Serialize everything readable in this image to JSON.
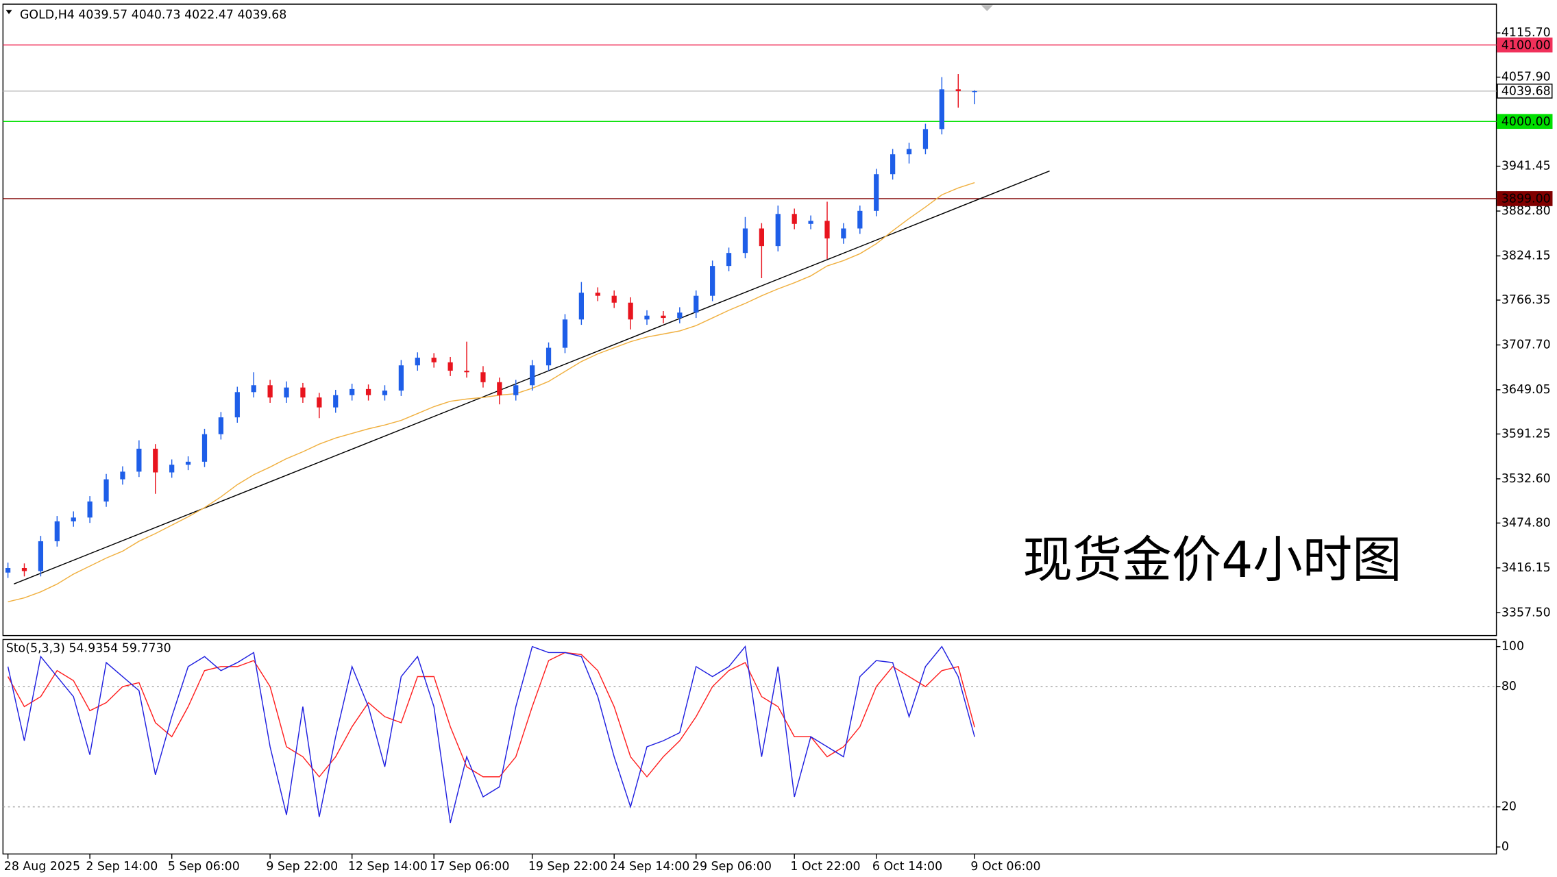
{
  "chart_data": [
    {
      "type": "candlestick",
      "title": "GOLD,H4  4039.57 4040.73 4022.47 4039.68",
      "annotation": "现货金价4小时图",
      "categories": [
        "28 Aug 2025",
        null,
        null,
        null,
        null,
        "2 Sep 14:00",
        null,
        null,
        null,
        null,
        "5 Sep 06:00",
        null,
        null,
        null,
        null,
        null,
        "9 Sep 22:00",
        null,
        null,
        null,
        null,
        "12 Sep 14:00",
        null,
        null,
        null,
        null,
        "17 Sep 06:00",
        null,
        null,
        null,
        null,
        null,
        "19 Sep 22:00",
        null,
        null,
        null,
        null,
        "24 Sep 14:00",
        null,
        null,
        null,
        null,
        "29 Sep 06:00",
        null,
        null,
        null,
        null,
        null,
        "1 Oct 22:00",
        null,
        null,
        null,
        null,
        "6 Oct 14:00",
        null,
        null,
        null,
        null,
        null,
        "9 Oct 06:00"
      ],
      "open": [
        3410,
        3416,
        3412,
        3451,
        3477,
        3482,
        3503,
        3532,
        3542,
        3572,
        3541,
        3551,
        3555,
        3591,
        3613,
        3646,
        3655,
        3639,
        3652,
        3639,
        3626,
        3642,
        3650,
        3642,
        3648,
        3681,
        3691,
        3685,
        3674,
        3672,
        3659,
        3642,
        3655,
        3681,
        3704,
        3741,
        3776,
        3772,
        3763,
        3741,
        3746,
        3743,
        3750,
        3772,
        3811,
        3828,
        3860,
        3837,
        3879,
        3866,
        3870,
        3847,
        3860,
        3883,
        3931,
        3957,
        3964,
        3990,
        4042,
        4039.57
      ],
      "high": [
        3423,
        3422,
        3458,
        3484,
        3490,
        3510,
        3539,
        3549,
        3583,
        3578,
        3558,
        3562,
        3598,
        3620,
        3653,
        3672,
        3662,
        3660,
        3658,
        3645,
        3649,
        3657,
        3656,
        3655,
        3688,
        3698,
        3697,
        3692,
        3712,
        3680,
        3665,
        3662,
        3688,
        3711,
        3748,
        3790,
        3783,
        3779,
        3770,
        3753,
        3752,
        3757,
        3779,
        3818,
        3835,
        3875,
        3867,
        3890,
        3886,
        3877,
        3895,
        3867,
        3890,
        3938,
        3964,
        3972,
        3997,
        4058,
        4062,
        4040.73
      ],
      "low": [
        3403,
        3405,
        3405,
        3444,
        3470,
        3475,
        3496,
        3525,
        3535,
        3513,
        3534,
        3544,
        3548,
        3584,
        3606,
        3639,
        3632,
        3632,
        3632,
        3612,
        3619,
        3635,
        3635,
        3635,
        3641,
        3674,
        3678,
        3667,
        3665,
        3652,
        3630,
        3635,
        3648,
        3674,
        3697,
        3734,
        3765,
        3756,
        3728,
        3734,
        3736,
        3736,
        3743,
        3765,
        3804,
        3821,
        3795,
        3830,
        3859,
        3859,
        3820,
        3840,
        3853,
        3876,
        3924,
        3945,
        3957,
        3983,
        4018,
        4022.47
      ],
      "close": [
        3416,
        3412,
        3451,
        3477,
        3482,
        3503,
        3532,
        3542,
        3572,
        3541,
        3551,
        3555,
        3591,
        3613,
        3646,
        3655,
        3639,
        3652,
        3639,
        3626,
        3642,
        3650,
        3642,
        3648,
        3681,
        3691,
        3685,
        3674,
        3672,
        3659,
        3642,
        3655,
        3681,
        3704,
        3741,
        3776,
        3772,
        3763,
        3741,
        3746,
        3743,
        3750,
        3772,
        3811,
        3828,
        3860,
        3837,
        3879,
        3866,
        3870,
        3847,
        3860,
        3883,
        3931,
        3957,
        3964,
        3990,
        4042,
        4039.57,
        4039.68
      ],
      "up_color": "#1e5ee8",
      "down_color": "#e8141e",
      "series": [
        {
          "color": "#f0b040",
          "values": [
            3371.8,
            3377,
            3384.8,
            3395,
            3408,
            3418.5,
            3429,
            3438,
            3451,
            3461,
            3472,
            3483,
            3495,
            3509,
            3525,
            3538,
            3548,
            3559,
            3568,
            3578,
            3586,
            3592,
            3598,
            3603,
            3609,
            3618,
            3627,
            3634,
            3637,
            3639,
            3642,
            3644,
            3651,
            3660,
            3673,
            3686,
            3696,
            3704,
            3712,
            3718,
            3722,
            3726,
            3733,
            3743,
            3753,
            3762,
            3772,
            3781,
            3789,
            3798,
            3811,
            3818,
            3827,
            3840,
            3857,
            3873,
            3888,
            3904,
            3913,
            3920
          ]
        }
      ],
      "trendline": {
        "color": "#000000",
        "values": [
          3395.1,
          3935.2
        ]
      },
      "hlines": [
        {
          "value": 4100,
          "label": "4100.00",
          "color": "#f0305a"
        },
        {
          "value": 4039.68,
          "label": "4039.68",
          "color": "#c0c0c0"
        },
        {
          "value": 4000,
          "label": "4000.00",
          "color": "#00e000"
        },
        {
          "value": 3899,
          "label": "3899.00",
          "color": "#800000"
        }
      ],
      "ylim": [
        3327.64,
        4153.35
      ],
      "yticks": [
        {
          "value": 4115.7,
          "label": "4115.70"
        },
        {
          "value": 4057.9,
          "label": "4057.90"
        },
        3941.45,
        {
          "value": 3882.8,
          "label": "3882.80"
        },
        3824.15,
        3766.35,
        {
          "value": 3707.7,
          "label": "3707.70"
        },
        3649.05,
        3591.25,
        {
          "value": 3532.6,
          "label": "3532.60"
        },
        {
          "value": 3474.8,
          "label": "3474.80"
        },
        3416.15,
        {
          "value": 3357.5,
          "label": "3357.50"
        }
      ]
    },
    {
      "type": "line",
      "title": "Sto(5,3,3) 54.9354 59.7730",
      "series": [
        {
          "color": "#2020e0",
          "values": [
            90,
            53,
            95,
            85,
            75,
            46,
            92,
            85,
            78,
            36,
            65,
            90,
            95,
            88,
            92,
            97,
            50,
            16,
            70,
            15,
            55,
            90,
            70,
            40,
            85,
            95,
            70,
            12,
            45,
            25,
            30,
            70,
            100,
            97,
            97,
            95,
            75,
            45,
            20,
            50,
            53,
            57,
            90,
            85,
            90,
            100,
            45,
            90,
            25,
            55,
            50,
            45,
            85,
            93,
            92,
            65,
            90,
            100,
            85,
            54.9354
          ]
        },
        {
          "color": "#ff2020",
          "values": [
            85,
            70,
            75,
            88,
            83,
            68,
            72,
            80,
            82,
            62,
            55,
            70,
            88,
            90,
            90,
            93,
            80,
            50,
            45,
            35,
            45,
            60,
            72,
            65,
            62,
            85,
            85,
            60,
            40,
            35,
            35,
            45,
            70,
            93,
            97,
            96,
            88,
            70,
            45,
            35,
            45,
            53,
            65,
            80,
            88,
            92,
            75,
            70,
            55,
            55,
            45,
            50,
            60,
            80,
            90,
            85,
            80,
            88,
            90,
            59.773
          ]
        }
      ],
      "ylim": [
        -3.5,
        103.5
      ],
      "yticks": [
        0,
        20,
        80,
        100
      ],
      "grid": [
        20,
        80
      ]
    }
  ]
}
